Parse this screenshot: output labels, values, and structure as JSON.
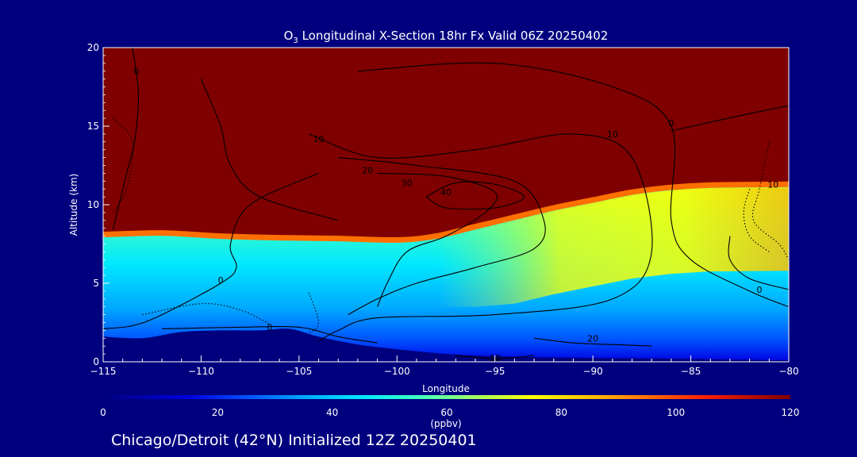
{
  "chart_data": {
    "type": "heatmap",
    "title_prefix": "O",
    "title_sub": "3",
    "title_rest": " Longitudinal X-Section 18hr  Fx Valid 06Z 20250402",
    "xlabel": "Longitude",
    "ylabel": "Altitude (km)",
    "xlim": [
      -115,
      -80
    ],
    "ylim": [
      0,
      20
    ],
    "x_ticks": [
      -115,
      -110,
      -105,
      -100,
      -95,
      -90,
      -85,
      -80
    ],
    "x_tick_labels": [
      "−115",
      "−110",
      "−105",
      "−100",
      "−95",
      "−90",
      "−85",
      "−80"
    ],
    "y_ticks": [
      0,
      5,
      10,
      15,
      20
    ],
    "y_tick_labels": [
      "0",
      "5",
      "10",
      "15",
      "20"
    ],
    "colorbar": {
      "min": 0,
      "max": 120,
      "unit_label": "(ppbv)",
      "ticks": [
        0,
        20,
        40,
        60,
        80,
        100,
        120
      ],
      "tick_labels": [
        "0",
        "20",
        "40",
        "60",
        "80",
        "100",
        "120"
      ]
    },
    "ozone_field": {
      "tropopause_km": [
        {
          "lon": -115,
          "alt": 8.1
        },
        {
          "lon": -112,
          "alt": 8.2
        },
        {
          "lon": -109,
          "alt": 8.0
        },
        {
          "lon": -106,
          "alt": 7.9
        },
        {
          "lon": -103,
          "alt": 7.85
        },
        {
          "lon": -100,
          "alt": 7.75
        },
        {
          "lon": -98,
          "alt": 8.0
        },
        {
          "lon": -96,
          "alt": 8.6
        },
        {
          "lon": -94,
          "alt": 9.2
        },
        {
          "lon": -92,
          "alt": 9.8
        },
        {
          "lon": -90,
          "alt": 10.3
        },
        {
          "lon": -88,
          "alt": 10.8
        },
        {
          "lon": -86,
          "alt": 11.1
        },
        {
          "lon": -84,
          "alt": 11.25
        },
        {
          "lon": -80,
          "alt": 11.3
        }
      ],
      "surface_km": [
        {
          "lon": -115,
          "alt": 1.6
        },
        {
          "lon": -113,
          "alt": 1.5
        },
        {
          "lon": -111,
          "alt": 1.9
        },
        {
          "lon": -109,
          "alt": 2.0
        },
        {
          "lon": -107,
          "alt": 2.0
        },
        {
          "lon": -105.5,
          "alt": 2.1
        },
        {
          "lon": -104,
          "alt": 1.6
        },
        {
          "lon": -102,
          "alt": 1.1
        },
        {
          "lon": -100,
          "alt": 0.8
        },
        {
          "lon": -98,
          "alt": 0.55
        },
        {
          "lon": -96,
          "alt": 0.4
        },
        {
          "lon": -93,
          "alt": 0.3
        },
        {
          "lon": -90,
          "alt": 0.25
        },
        {
          "lon": -86,
          "alt": 0.2
        },
        {
          "lon": -83,
          "alt": 0.15
        },
        {
          "lon": -80,
          "alt": 0.1
        }
      ],
      "stratosphere_ppbv": 120,
      "near_surface_ppbv": 30,
      "free_troposphere_ppbv": 52,
      "upper_troposphere_east_ppbv": 72,
      "colors": {
        "c0": "#00007f",
        "c15": "#0000e0",
        "c25": "#0050ff",
        "c35": "#00a8ff",
        "c45": "#00e8ff",
        "c55": "#40ffc0",
        "c65": "#a0ff60",
        "c75": "#ffff00",
        "c85": "#ffc000",
        "c95": "#ff7000",
        "c105": "#ff2000",
        "c120": "#7f0000"
      }
    },
    "contours": [
      {
        "label": "0",
        "style": "solid",
        "points": [
          [
            -113.5,
            20
          ],
          [
            -113.2,
            17
          ],
          [
            -113.4,
            14
          ],
          [
            -113.8,
            12
          ],
          [
            -114.5,
            8.4
          ]
        ],
        "label_at": [
          -113.3,
          18.5
        ]
      },
      {
        "label": "0",
        "style": "solid",
        "points": [
          [
            -104,
            12
          ],
          [
            -107.5,
            10
          ],
          [
            -108.5,
            7.5
          ],
          [
            -108.2,
            6
          ],
          [
            -109,
            5
          ],
          [
            -112,
            3
          ],
          [
            -113.5,
            2.3
          ],
          [
            -115,
            2.1
          ]
        ],
        "label_at": [
          -109,
          5.2
        ]
      },
      {
        "label": "0",
        "style": "solid",
        "points": [
          [
            -112,
            2.1
          ],
          [
            -108,
            2.2
          ],
          [
            -105,
            2.2
          ],
          [
            -103,
            1.6
          ],
          [
            -101,
            1.2
          ]
        ],
        "label_at": [
          -106.5,
          2.2
        ]
      },
      {
        "label": "0",
        "style": "solid",
        "points": [
          [
            -86,
            14.7
          ],
          [
            -82,
            15.8
          ],
          [
            -80,
            16.3
          ]
        ],
        "label_at": [
          -86,
          15.2
        ]
      },
      {
        "label": "0",
        "style": "solid",
        "points": [
          [
            -80,
            4.6
          ],
          [
            -82,
            5.3
          ],
          [
            -83,
            6.5
          ],
          [
            -83,
            8
          ]
        ],
        "label_at": [
          -81.5,
          4.6
        ]
      },
      {
        "label": "",
        "style": "solid",
        "points": [
          [
            -110,
            18
          ],
          [
            -109,
            15
          ],
          [
            -108.5,
            12.5
          ],
          [
            -107,
            10.5
          ],
          [
            -103,
            9
          ]
        ],
        "label_at": null
      },
      {
        "label": "10",
        "style": "solid",
        "points": [
          [
            -102,
            18.5
          ],
          [
            -95,
            19
          ],
          [
            -89,
            17.5
          ],
          [
            -86,
            15
          ],
          [
            -86,
            9
          ],
          [
            -85,
            6.5
          ],
          [
            -82,
            4.5
          ],
          [
            -80,
            3.5
          ]
        ],
        "label_at": [
          -89,
          14.5
        ]
      },
      {
        "label": "10",
        "style": "solid",
        "points": [
          [
            -104.5,
            14.5
          ],
          [
            -101,
            13
          ],
          [
            -96,
            13.5
          ],
          [
            -91,
            14.5
          ],
          [
            -88,
            13
          ],
          [
            -87,
            7
          ],
          [
            -89,
            4
          ],
          [
            -95,
            3
          ],
          [
            -101,
            2.8
          ],
          [
            -103,
            2
          ],
          [
            -104,
            1.3
          ]
        ],
        "label_at": [
          -104,
          14.2
        ]
      },
      {
        "label": "10",
        "style": "solid",
        "points": [
          [
            -97,
            0.4
          ],
          [
            -95,
            0.2
          ],
          [
            -93,
            0.4
          ]
        ],
        "label_at": [
          -95,
          0.25
        ]
      },
      {
        "label": "20",
        "style": "solid",
        "points": [
          [
            -103,
            13
          ],
          [
            -99,
            12.5
          ],
          [
            -94,
            11.5
          ],
          [
            -92.5,
            9
          ],
          [
            -93,
            7.2
          ],
          [
            -96,
            6
          ],
          [
            -99,
            5
          ],
          [
            -101,
            4
          ],
          [
            -102.5,
            3
          ]
        ],
        "label_at": [
          -101.5,
          12.2
        ]
      },
      {
        "label": "20",
        "style": "solid",
        "points": [
          [
            -93,
            1.5
          ],
          [
            -91,
            1.2
          ],
          [
            -89,
            1.1
          ],
          [
            -87,
            1.0
          ]
        ],
        "label_at": [
          -90,
          1.5
        ]
      },
      {
        "label": "30",
        "style": "solid",
        "points": [
          [
            -101,
            12
          ],
          [
            -97.5,
            11.8
          ],
          [
            -95,
            10.8
          ],
          [
            -95.5,
            9.5
          ],
          [
            -97.5,
            8
          ],
          [
            -99.5,
            7
          ],
          [
            -100.5,
            5
          ],
          [
            -101,
            3.5
          ]
        ],
        "label_at": [
          -99.5,
          11.4
        ]
      },
      {
        "label": "40",
        "style": "solid",
        "points": [
          [
            -98.5,
            10.5
          ],
          [
            -97,
            11.4
          ],
          [
            -95,
            11.3
          ],
          [
            -93.5,
            10.5
          ],
          [
            -95,
            9.8
          ],
          [
            -97.5,
            9.8
          ],
          [
            -98.5,
            10.5
          ]
        ],
        "label_at": [
          -97.5,
          10.8
        ]
      },
      {
        "label": "",
        "style": "dotted",
        "points": [
          [
            -114.5,
            15.5
          ],
          [
            -113.5,
            14
          ],
          [
            -113.8,
            11
          ],
          [
            -114.5,
            9.5
          ]
        ],
        "label_at": null
      },
      {
        "label": "",
        "style": "dotted",
        "points": [
          [
            -113,
            3
          ],
          [
            -110,
            3.7
          ],
          [
            -108,
            3.3
          ],
          [
            -106.5,
            2.4
          ]
        ],
        "label_at": null
      },
      {
        "label": "",
        "style": "dotted",
        "points": [
          [
            -104.5,
            4.4
          ],
          [
            -104,
            2.5
          ],
          [
            -104.5,
            1.8
          ]
        ],
        "label_at": null
      },
      {
        "label": "10",
        "style": "dotted",
        "points": [
          [
            -81,
            14
          ],
          [
            -81.5,
            11
          ],
          [
            -81.8,
            9
          ],
          [
            -80.5,
            7.5
          ],
          [
            -80,
            6.5
          ]
        ],
        "label_at": [
          -80.8,
          11.3
        ]
      },
      {
        "label": "",
        "style": "dotted",
        "points": [
          [
            -82,
            11
          ],
          [
            -82.3,
            9.5
          ],
          [
            -82,
            8
          ],
          [
            -81,
            7
          ]
        ],
        "label_at": null
      }
    ],
    "footer": "Chicago/Detroit (42°N) Initialized 12Z 20250401"
  }
}
